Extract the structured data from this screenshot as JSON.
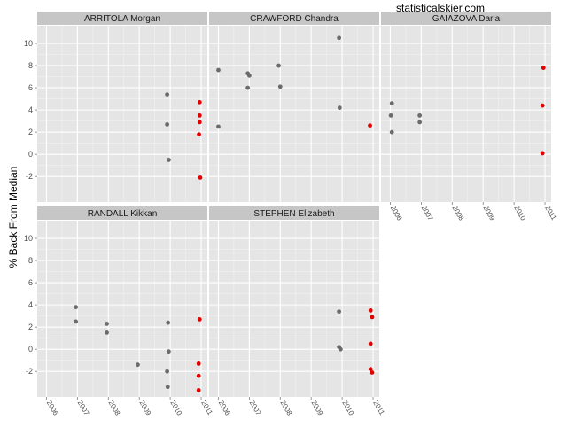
{
  "watermark": "statisticalskier.com",
  "colors": {
    "panel_bg": "#e5e5e5",
    "strip_bg": "#c6c6c6",
    "grid_major": "#ffffff",
    "grid_minor": "#f2f2f2",
    "past_race": "#6b6b6b",
    "latest_race": "#e00000"
  },
  "chart_data": {
    "type": "scatter",
    "faceted": true,
    "ylabel": "% Back From Median",
    "xlabel": "",
    "xlim": [
      2005.7,
      2011.2
    ],
    "ylim": [
      -4.3,
      11.6
    ],
    "yticks": [
      -2,
      0,
      2,
      4,
      6,
      8,
      10
    ],
    "yticklabels": [
      "-2",
      "0",
      "2",
      "4",
      "6",
      "8",
      "10"
    ],
    "xticks": [
      2006,
      2007,
      2008,
      2009,
      2010,
      2011
    ],
    "xticklabels": [
      "2006",
      "2007",
      "2008",
      "2009",
      "2010",
      "2011"
    ],
    "grid": true,
    "legend": "none",
    "facets": [
      {
        "name": "ARRITOLA Morgan",
        "past": [
          [
            2009.9,
            5.4
          ],
          [
            2009.9,
            2.7
          ],
          [
            2009.95,
            -0.5
          ]
        ],
        "latest": [
          [
            2010.95,
            4.7
          ],
          [
            2010.95,
            3.5
          ],
          [
            2010.95,
            2.9
          ],
          [
            2010.93,
            1.8
          ],
          [
            2010.97,
            -2.1
          ]
        ]
      },
      {
        "name": "CRAWFORD Chandra",
        "past": [
          [
            2006.0,
            7.6
          ],
          [
            2006.0,
            2.5
          ],
          [
            2006.95,
            7.3
          ],
          [
            2007.0,
            7.1
          ],
          [
            2006.95,
            6.0
          ],
          [
            2007.95,
            8.0
          ],
          [
            2008.0,
            6.1
          ],
          [
            2009.9,
            10.5
          ],
          [
            2009.92,
            4.2
          ]
        ],
        "latest": [
          [
            2010.9,
            2.6
          ]
        ]
      },
      {
        "name": "GAIAZOVA Daria",
        "past": [
          [
            2006.05,
            4.6
          ],
          [
            2006.02,
            3.5
          ],
          [
            2006.05,
            2.0
          ],
          [
            2006.95,
            3.5
          ],
          [
            2006.95,
            2.9
          ]
        ],
        "latest": [
          [
            2010.95,
            7.8
          ],
          [
            2010.92,
            4.4
          ],
          [
            2010.92,
            0.1
          ]
        ]
      },
      {
        "name": "RANDALL Kikkan",
        "past": [
          [
            2006.95,
            3.8
          ],
          [
            2006.95,
            2.5
          ],
          [
            2007.95,
            2.3
          ],
          [
            2007.95,
            1.5
          ],
          [
            2008.95,
            -1.4
          ],
          [
            2009.93,
            2.4
          ],
          [
            2009.95,
            -0.2
          ],
          [
            2009.9,
            -2.0
          ],
          [
            2009.92,
            -3.4
          ]
        ],
        "latest": [
          [
            2010.95,
            2.7
          ],
          [
            2010.92,
            -1.3
          ],
          [
            2010.92,
            -2.4
          ],
          [
            2010.92,
            -3.7
          ]
        ]
      },
      {
        "name": "STEPHEN Elizabeth",
        "past": [
          [
            2009.9,
            3.4
          ],
          [
            2009.9,
            0.2
          ],
          [
            2009.95,
            0.0
          ]
        ],
        "latest": [
          [
            2010.92,
            3.5
          ],
          [
            2010.97,
            2.9
          ],
          [
            2010.92,
            0.5
          ],
          [
            2010.92,
            -1.8
          ],
          [
            2010.97,
            -2.1
          ]
        ]
      }
    ]
  }
}
